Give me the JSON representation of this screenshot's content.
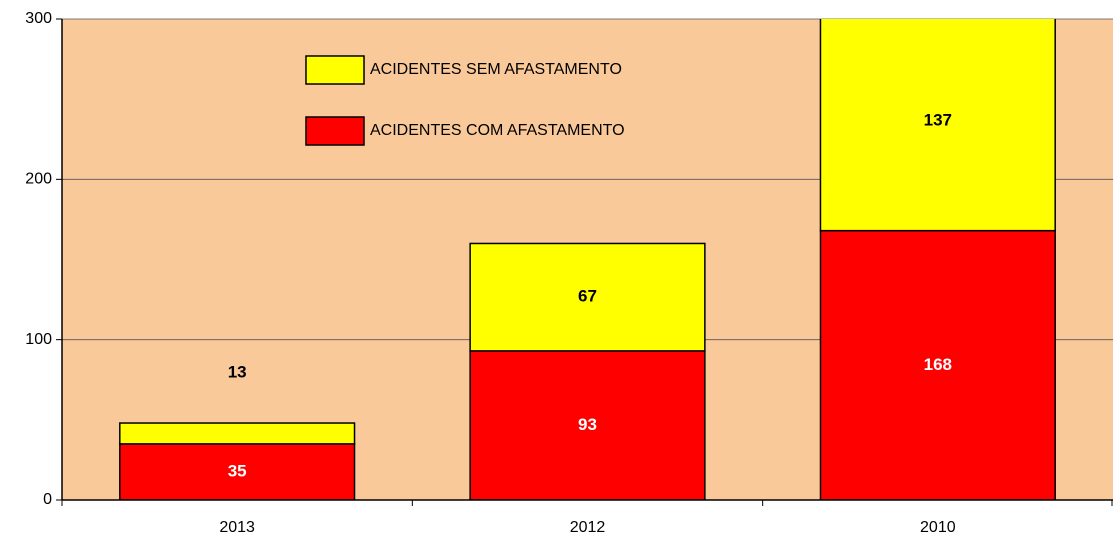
{
  "chart_data": {
    "type": "stacked-bar",
    "categories": [
      "2013",
      "2012",
      "2010"
    ],
    "series": [
      {
        "name": "ACIDENTES COM  AFASTAMENTO",
        "color": "#ff0000",
        "label_color": "#ffffff",
        "values": [
          35,
          93,
          168
        ]
      },
      {
        "name": "ACIDENTES SEM AFASTAMENTO",
        "color": "#ffff00",
        "label_color": "#000000",
        "values": [
          13,
          67,
          137
        ]
      }
    ],
    "ylim": [
      0,
      300
    ],
    "yticks": [
      0,
      100,
      200,
      300
    ],
    "grid": true,
    "background": "#fac99a"
  }
}
